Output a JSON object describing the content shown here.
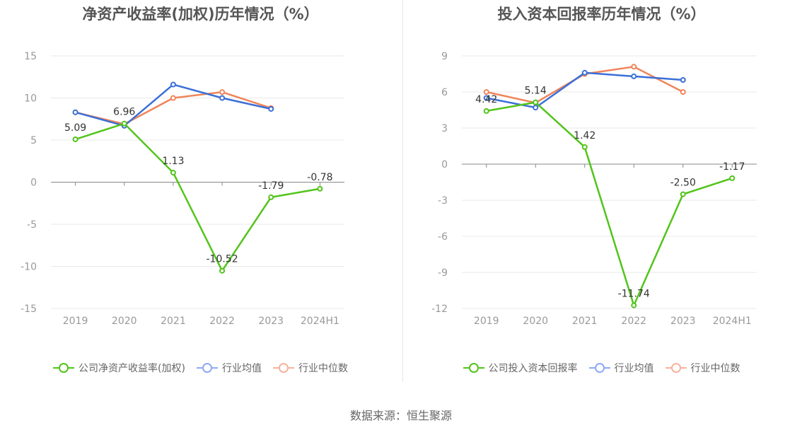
{
  "chart_data": [
    {
      "type": "line",
      "title": "净资产收益率(加权)历年情况（%）",
      "categories": [
        "2019",
        "2020",
        "2021",
        "2022",
        "2023",
        "2024H1"
      ],
      "ylim": [
        -15,
        15
      ],
      "yticks": [
        15,
        10,
        5,
        0,
        -5,
        -10,
        -15
      ],
      "yticks_labels": [
        "15",
        "10",
        "5",
        "0",
        "-5",
        "-10",
        "-15"
      ],
      "grid": true,
      "legend_position": "bottom",
      "series": [
        {
          "name": "公司净资产收益率(加权)",
          "color": "#52c41a",
          "values": [
            5.09,
            6.96,
            1.13,
            -10.52,
            -1.79,
            -0.78
          ],
          "labels": [
            "5.09",
            "6.96",
            "1.13",
            "-10.52",
            "-1.79",
            "-0.78"
          ]
        },
        {
          "name": "行业均值",
          "color": "#3b6fd8",
          "values": [
            8.3,
            6.7,
            11.6,
            10.0,
            8.7,
            null
          ]
        },
        {
          "name": "行业中位数",
          "color": "#f0855c",
          "values": [
            8.3,
            6.9,
            10.0,
            10.7,
            8.8,
            null
          ]
        }
      ]
    },
    {
      "type": "line",
      "title": "投入资本回报率历年情况（%）",
      "categories": [
        "2019",
        "2020",
        "2021",
        "2022",
        "2023",
        "2024H1"
      ],
      "ylim": [
        -12,
        9
      ],
      "yticks": [
        9,
        6,
        3,
        0,
        -3,
        -6,
        -9,
        -12
      ],
      "yticks_labels": [
        "9",
        "6",
        "3",
        "0",
        "-3",
        "-6",
        "-9",
        "-12"
      ],
      "grid": true,
      "legend_position": "bottom",
      "series": [
        {
          "name": "公司投入资本回报率",
          "color": "#52c41a",
          "values": [
            4.42,
            5.14,
            1.42,
            -11.74,
            -2.5,
            -1.17
          ],
          "labels": [
            "4.42",
            "5.14",
            "1.42",
            "-11.74",
            "-2.50",
            "-1.17"
          ]
        },
        {
          "name": "行业均值",
          "color": "#3b6fd8",
          "values": [
            5.5,
            4.7,
            7.6,
            7.3,
            7.0,
            null
          ]
        },
        {
          "name": "行业中位数",
          "color": "#f0855c",
          "values": [
            6.0,
            5.1,
            7.5,
            8.1,
            6.0,
            null
          ]
        }
      ]
    }
  ],
  "footer": {
    "source": "数据来源：恒生聚源"
  }
}
